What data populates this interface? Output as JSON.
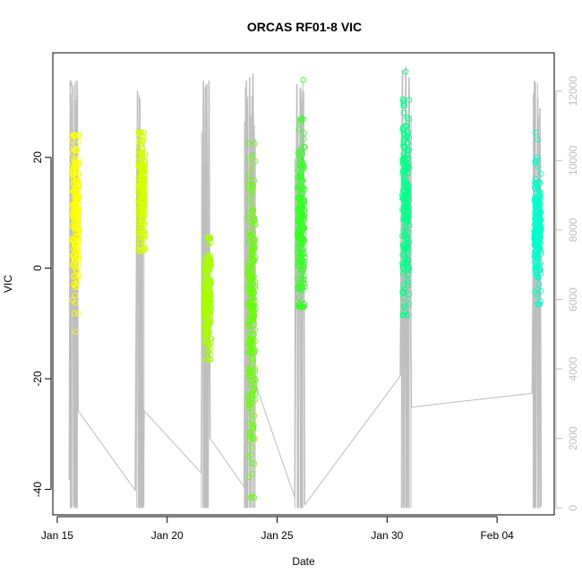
{
  "chart_data": {
    "type": "scatter",
    "title": "ORCAS RF01-8 VIC",
    "xlabel": "Date",
    "ylabel": "VIC",
    "x_ticks": [
      "Jan 15",
      "Jan 20",
      "Jan 25",
      "Jan 30",
      "Feb 04"
    ],
    "x_tick_days": [
      0,
      5,
      10,
      15,
      20
    ],
    "xlim_days": [
      -0.2,
      22.6
    ],
    "y_ticks": [
      "-40",
      "-20",
      "0",
      "20"
    ],
    "y_tick_values": [
      -40,
      -20,
      0,
      20
    ],
    "ylim": [
      -44.6,
      38.9
    ],
    "y2_ticks": [
      "0",
      "2000",
      "4000",
      "6000",
      "8000",
      "10000",
      "12000"
    ],
    "y2_tick_values": [
      0,
      2000,
      4000,
      6000,
      8000,
      10000,
      12000
    ],
    "y2lim": [
      -200,
      13100
    ],
    "altitude_color": "#bebebe",
    "flights": [
      {
        "day": 0.85,
        "vic_min": -11.5,
        "vic_max": 24.0,
        "vic_mean": 10.0,
        "vic_sd": 7.5,
        "color": "#ffff00",
        "alt_trace": [
          [
            0.55,
            800
          ],
          [
            0.6,
            12300
          ],
          [
            0.7,
            12100
          ],
          [
            0.75,
            50
          ],
          [
            0.8,
            12200
          ],
          [
            0.85,
            50
          ],
          [
            0.9,
            12300
          ],
          [
            0.95,
            2800
          ]
        ]
      },
      {
        "day": 3.85,
        "vic_min": 3.0,
        "vic_max": 24.5,
        "vic_mean": 14.0,
        "vic_sd": 5.0,
        "color": "#d4ff00",
        "alt_trace": [
          [
            3.55,
            500
          ],
          [
            3.65,
            12000
          ],
          [
            3.7,
            50
          ],
          [
            3.75,
            6000
          ],
          [
            3.8,
            50
          ],
          [
            3.85,
            6200
          ],
          [
            3.9,
            50
          ],
          [
            3.95,
            2800
          ]
        ]
      },
      {
        "day": 6.85,
        "vic_min": -16.5,
        "vic_max": 5.5,
        "vic_mean": -6.0,
        "vic_sd": 5.0,
        "color": "#a8ff00",
        "alt_trace": [
          [
            6.55,
            1000
          ],
          [
            6.65,
            12300
          ],
          [
            6.7,
            50
          ],
          [
            6.8,
            12200
          ],
          [
            6.85,
            50
          ],
          [
            6.9,
            12300
          ],
          [
            6.95,
            2000
          ]
        ]
      },
      {
        "day": 8.85,
        "vic_min": -41.5,
        "vic_max": 22.5,
        "vic_mean": -10.0,
        "vic_sd": 15.0,
        "color": "#66ff00",
        "alt_trace": [
          [
            8.5,
            600
          ],
          [
            8.6,
            12300
          ],
          [
            8.65,
            50
          ],
          [
            8.75,
            12400
          ],
          [
            8.8,
            50
          ],
          [
            8.9,
            12500
          ],
          [
            9.0,
            3600
          ]
        ]
      },
      {
        "day": 11.1,
        "vic_min": -7.0,
        "vic_max": 34.0,
        "vic_mean": 8.0,
        "vic_sd": 8.0,
        "color": "#33ff22",
        "alt_trace": [
          [
            10.8,
            300
          ],
          [
            10.9,
            12200
          ],
          [
            10.95,
            50
          ],
          [
            11.05,
            12100
          ],
          [
            11.1,
            50
          ],
          [
            11.2,
            12000
          ],
          [
            11.25,
            80
          ]
        ]
      },
      {
        "day": 15.85,
        "vic_min": -8.5,
        "vic_max": 35.5,
        "vic_mean": 10.0,
        "vic_sd": 9.0,
        "color": "#00ff88",
        "alt_trace": [
          [
            15.6,
            3800
          ],
          [
            15.7,
            12600
          ],
          [
            15.75,
            50
          ],
          [
            15.85,
            12700
          ],
          [
            15.9,
            50
          ],
          [
            16.0,
            12400
          ],
          [
            16.1,
            2900
          ]
        ]
      },
      {
        "day": 21.85,
        "vic_min": -6.5,
        "vic_max": 24.5,
        "vic_mean": 7.0,
        "vic_sd": 5.0,
        "color": "#00ffcc",
        "alt_trace": [
          [
            21.6,
            3300
          ],
          [
            21.7,
            12300
          ],
          [
            21.75,
            50
          ],
          [
            21.85,
            11800
          ],
          [
            21.9,
            50
          ],
          [
            21.95,
            11500
          ],
          [
            22.0,
            50
          ]
        ]
      }
    ]
  }
}
